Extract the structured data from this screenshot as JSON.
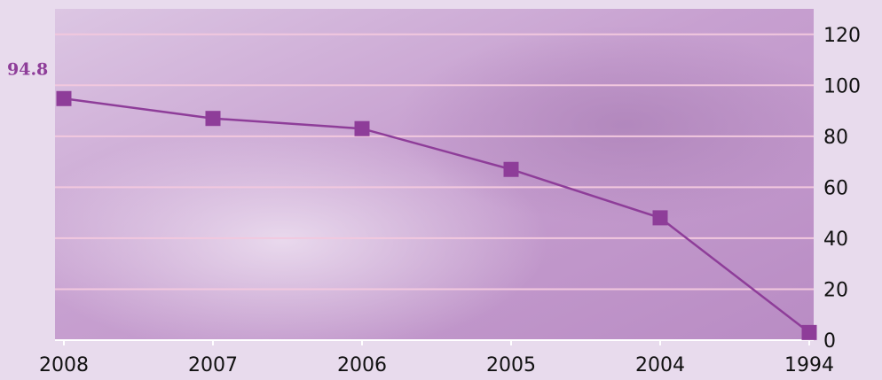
{
  "colors": {
    "background": "#e8dbed",
    "plot_background": "#c9a6d2",
    "gridline": "#f2c8de",
    "series": "#8e3d99",
    "text": "#111111"
  },
  "chart_data": {
    "type": "line",
    "title": "",
    "xlabel": "",
    "ylabel": "",
    "categories": [
      "2008",
      "2007",
      "2006",
      "2005",
      "2004",
      "1994"
    ],
    "series": [
      {
        "values": [
          94.8,
          87,
          83,
          67,
          48,
          3
        ]
      }
    ],
    "ylim": [
      0,
      120
    ],
    "yticks": [
      "0",
      "20",
      "40",
      "60",
      "80",
      "100",
      "120"
    ],
    "y_axis_position": "right",
    "grid": true,
    "marker": "square",
    "data_labels": [
      {
        "category": "2008",
        "text": "94.8"
      }
    ]
  }
}
